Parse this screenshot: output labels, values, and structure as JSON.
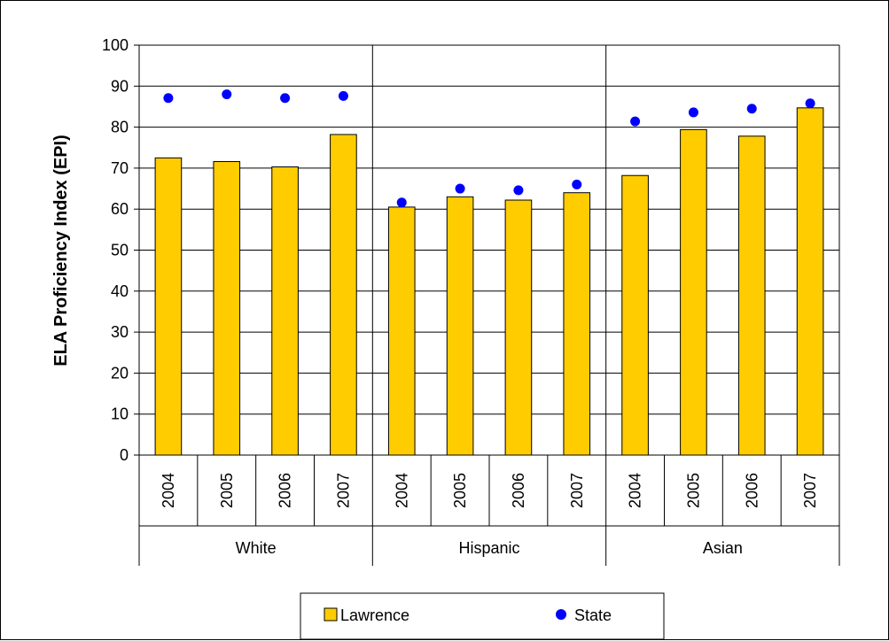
{
  "chart_data": {
    "type": "bar",
    "groups": [
      {
        "name": "White",
        "categories": [
          "2004",
          "2005",
          "2006",
          "2007"
        ]
      },
      {
        "name": "Hispanic",
        "categories": [
          "2004",
          "2005",
          "2006",
          "2007"
        ]
      },
      {
        "name": "Asian",
        "categories": [
          "2004",
          "2005",
          "2006",
          "2007"
        ]
      }
    ],
    "series": [
      {
        "name": "Lawrence",
        "mark": "bar",
        "color": "#FFCC00",
        "values": [
          72.5,
          71.6,
          70.3,
          78.2,
          60.5,
          63.0,
          62.2,
          64.0,
          68.2,
          79.4,
          77.8,
          84.7
        ]
      },
      {
        "name": "State",
        "mark": "dot",
        "color": "#0000FF",
        "values": [
          87.1,
          88.0,
          87.1,
          87.6,
          61.6,
          65.0,
          64.6,
          66.0,
          81.4,
          83.6,
          84.5,
          85.8
        ]
      }
    ],
    "title": "",
    "xlabel": "",
    "ylabel": "ELA Proficiency Index (EPI)",
    "ylim": [
      0,
      100
    ],
    "yticks": [
      "0",
      "10",
      "20",
      "30",
      "40",
      "50",
      "60",
      "70",
      "80",
      "90",
      "100"
    ],
    "grid": true,
    "legend_position": "bottom"
  }
}
